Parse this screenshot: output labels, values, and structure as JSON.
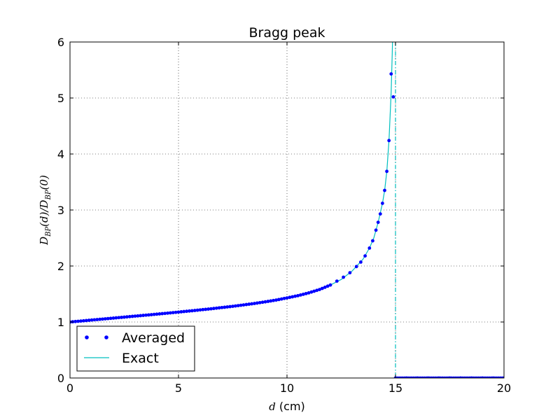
{
  "chart_data": {
    "type": "line",
    "title": "Bragg peak",
    "xlabel_var": "d",
    "xlabel_unit": "(cm)",
    "ylabel": "D_BP(d)/D_BP(0)",
    "ylabel_parts": {
      "d1": "D",
      "s1": "BP",
      "m1": "(d)/",
      "d2": "D",
      "s2": "BP",
      "m2": "(0)"
    },
    "xlim": [
      0,
      20
    ],
    "ylim": [
      0,
      6
    ],
    "xticks": [
      0,
      5,
      10,
      15,
      20
    ],
    "yticks": [
      0,
      1,
      2,
      3,
      4,
      5,
      6
    ],
    "xtick_labels": [
      "0",
      "5",
      "10",
      "15",
      "20"
    ],
    "ytick_labels": [
      "0",
      "1",
      "2",
      "3",
      "4",
      "5",
      "6"
    ],
    "grid": true,
    "legend_position": "lower-left",
    "vertical_line_x": 15,
    "series": [
      {
        "name": "Averaged",
        "style": "dots",
        "color": "#0000ff",
        "description": "dense markers near the curve; sampled points listed below",
        "points": [
          [
            0.0,
            1.0
          ],
          [
            0.5,
            1.017
          ],
          [
            1.0,
            1.035
          ],
          [
            1.5,
            1.052
          ],
          [
            2.0,
            1.07
          ],
          [
            2.5,
            1.087
          ],
          [
            3.0,
            1.105
          ],
          [
            3.5,
            1.122
          ],
          [
            4.0,
            1.14
          ],
          [
            4.5,
            1.158
          ],
          [
            5.0,
            1.177
          ],
          [
            5.5,
            1.196
          ],
          [
            6.0,
            1.216
          ],
          [
            6.5,
            1.236
          ],
          [
            7.0,
            1.258
          ],
          [
            7.5,
            1.28
          ],
          [
            8.0,
            1.305
          ],
          [
            8.5,
            1.331
          ],
          [
            9.0,
            1.36
          ],
          [
            9.5,
            1.392
          ],
          [
            10.0,
            1.43
          ],
          [
            10.5,
            1.47
          ],
          [
            11.0,
            1.52
          ],
          [
            11.5,
            1.58
          ],
          [
            12.0,
            1.66
          ],
          [
            12.3,
            1.73
          ],
          [
            12.6,
            1.8
          ],
          [
            12.9,
            1.88
          ],
          [
            13.2,
            1.99
          ],
          [
            13.4,
            2.07
          ],
          [
            13.6,
            2.18
          ],
          [
            13.8,
            2.32
          ],
          [
            13.95,
            2.45
          ],
          [
            14.1,
            2.64
          ],
          [
            14.2,
            2.78
          ],
          [
            14.3,
            2.93
          ],
          [
            14.4,
            3.12
          ],
          [
            14.5,
            3.35
          ],
          [
            14.6,
            3.69
          ],
          [
            14.7,
            4.24
          ],
          [
            14.8,
            5.43
          ],
          [
            14.9,
            5.02
          ],
          [
            15.0,
            0.0
          ],
          [
            15.5,
            0.0
          ],
          [
            16.0,
            0.0
          ],
          [
            16.5,
            0.0
          ],
          [
            17.0,
            0.0
          ],
          [
            17.5,
            0.0
          ],
          [
            18.0,
            0.0
          ],
          [
            18.5,
            0.0
          ],
          [
            19.0,
            0.0
          ],
          [
            19.5,
            0.0
          ],
          [
            20.0,
            0.0
          ]
        ]
      },
      {
        "name": "Exact",
        "style": "line",
        "color": "#00bfbf",
        "description": "continuous curve rising steeply to the peak at d = 15, then zero",
        "points": [
          [
            0.0,
            1.0
          ],
          [
            1.0,
            1.035
          ],
          [
            2.0,
            1.07
          ],
          [
            3.0,
            1.105
          ],
          [
            4.0,
            1.14
          ],
          [
            5.0,
            1.177
          ],
          [
            6.0,
            1.216
          ],
          [
            7.0,
            1.258
          ],
          [
            8.0,
            1.305
          ],
          [
            9.0,
            1.36
          ],
          [
            10.0,
            1.43
          ],
          [
            11.0,
            1.52
          ],
          [
            12.0,
            1.66
          ],
          [
            12.5,
            1.76
          ],
          [
            13.0,
            1.91
          ],
          [
            13.5,
            2.12
          ],
          [
            13.8,
            2.32
          ],
          [
            14.0,
            2.5
          ],
          [
            14.2,
            2.78
          ],
          [
            14.4,
            3.12
          ],
          [
            14.5,
            3.35
          ],
          [
            14.6,
            3.69
          ],
          [
            14.7,
            4.24
          ],
          [
            14.8,
            5.1
          ],
          [
            14.85,
            5.8
          ],
          [
            14.88,
            6.3
          ]
        ]
      }
    ]
  }
}
